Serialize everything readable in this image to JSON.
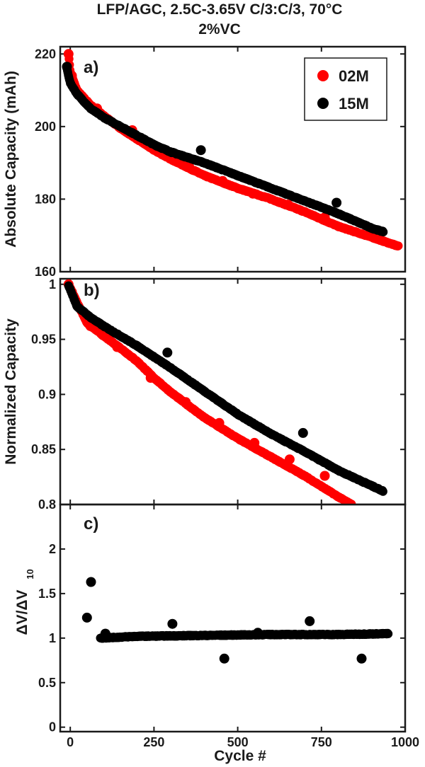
{
  "title_line1": "LFP/AGC, 2.5C-3.65V C/3:C/3, 70°C",
  "title_line2": "2%VC",
  "xlabel": "Cycle #",
  "colors": {
    "02M": "#ff0000",
    "15M": "#000000",
    "axis": "#1a1a1a"
  },
  "chart_data": [
    {
      "type": "scatter",
      "panel": "a)",
      "ylabel": "Absolute Capacity (mAh)",
      "xlim": [
        -30,
        1000
      ],
      "ylim": [
        160,
        222
      ],
      "xticks": [
        0,
        250,
        500,
        750,
        1000
      ],
      "yticks": [
        160,
        180,
        200,
        220
      ],
      "legend": {
        "position": "top-right",
        "entries": [
          "02M",
          "15M"
        ]
      },
      "series": [
        {
          "name": "02M",
          "curve": [
            [
              -5,
              220
            ],
            [
              0,
              215
            ],
            [
              20,
              210
            ],
            [
              60,
              206
            ],
            [
              100,
              203
            ],
            [
              150,
              199.5
            ],
            [
              200,
              196.5
            ],
            [
              250,
              193.5
            ],
            [
              300,
              191
            ],
            [
              400,
              186.5
            ],
            [
              500,
              183
            ],
            [
              600,
              180
            ],
            [
              700,
              176.5
            ],
            [
              800,
              172.5
            ],
            [
              900,
              169.5
            ],
            [
              980,
              167
            ]
          ],
          "outliers": [
            [
              -5,
              220
            ],
            [
              5,
              214
            ],
            [
              80,
              205
            ],
            [
              185,
              199
            ],
            [
              265,
              193
            ],
            [
              355,
              189
            ],
            [
              455,
              185
            ],
            [
              545,
              181.5
            ],
            [
              650,
              178.5
            ],
            [
              760,
              175
            ],
            [
              905,
              171
            ]
          ]
        },
        {
          "name": "15M",
          "curve": [
            [
              -10,
              216
            ],
            [
              0,
              212
            ],
            [
              20,
              209
            ],
            [
              60,
              205
            ],
            [
              100,
              202.5
            ],
            [
              150,
              200
            ],
            [
              200,
              197.5
            ],
            [
              250,
              195
            ],
            [
              300,
              193
            ],
            [
              400,
              190
            ],
            [
              500,
              186.5
            ],
            [
              600,
              183
            ],
            [
              700,
              179.5
            ],
            [
              800,
              176
            ],
            [
              900,
              172
            ],
            [
              935,
              171
            ]
          ],
          "outliers": [
            [
              -10,
              216.5
            ],
            [
              390,
              193.5
            ],
            [
              795,
              179
            ]
          ]
        }
      ]
    },
    {
      "type": "scatter",
      "panel": "b)",
      "ylabel": "Normalized Capacity",
      "xlim": [
        -30,
        1000
      ],
      "ylim": [
        0.8,
        1.005
      ],
      "xticks": [
        0,
        250,
        500,
        750,
        1000
      ],
      "yticks": [
        0.8,
        0.85,
        0.9,
        0.95,
        1
      ],
      "ytick_labels": [
        "0.8",
        "0.85",
        "0.9",
        "0.95",
        "1"
      ],
      "series": [
        {
          "name": "02M",
          "curve": [
            [
              -5,
              1.0
            ],
            [
              10,
              0.99
            ],
            [
              50,
              0.965
            ],
            [
              100,
              0.953
            ],
            [
              150,
              0.942
            ],
            [
              200,
              0.93
            ],
            [
              250,
              0.915
            ],
            [
              300,
              0.902
            ],
            [
              400,
              0.879
            ],
            [
              500,
              0.86
            ],
            [
              600,
              0.843
            ],
            [
              700,
              0.826
            ],
            [
              800,
              0.807
            ],
            [
              840,
              0.8
            ]
          ],
          "outliers": [
            [
              -5,
              1.0
            ],
            [
              5,
              0.993
            ],
            [
              60,
              0.962
            ],
            [
              140,
              0.943
            ],
            [
              240,
              0.915
            ],
            [
              345,
              0.893
            ],
            [
              445,
              0.874
            ],
            [
              550,
              0.856
            ],
            [
              655,
              0.841
            ],
            [
              760,
              0.826
            ]
          ]
        },
        {
          "name": "15M",
          "curve": [
            [
              -5,
              0.999
            ],
            [
              20,
              0.98
            ],
            [
              60,
              0.97
            ],
            [
              100,
              0.962
            ],
            [
              200,
              0.944
            ],
            [
              300,
              0.924
            ],
            [
              400,
              0.903
            ],
            [
              500,
              0.882
            ],
            [
              600,
              0.864
            ],
            [
              700,
              0.848
            ],
            [
              800,
              0.831
            ],
            [
              900,
              0.817
            ],
            [
              935,
              0.812
            ]
          ],
          "outliers": [
            [
              290,
              0.938
            ],
            [
              695,
              0.865
            ]
          ]
        }
      ]
    },
    {
      "type": "scatter",
      "panel": "c)",
      "ylabel_main": "ΔV/ΔV",
      "ylabel_sub": "10",
      "xlim": [
        -30,
        1000
      ],
      "ylim": [
        -0.05,
        2.5
      ],
      "xticks": [
        0,
        250,
        500,
        750,
        1000
      ],
      "yticks": [
        0,
        0.5,
        1,
        1.5,
        2
      ],
      "ytick_labels": [
        "0",
        "0.5",
        "1",
        "1.5",
        "2"
      ],
      "series": [
        {
          "name": "15M",
          "curve": [
            [
              90,
              1.0
            ],
            [
              200,
              1.02
            ],
            [
              400,
              1.03
            ],
            [
              600,
              1.04
            ],
            [
              800,
              1.04
            ],
            [
              950,
              1.05
            ]
          ],
          "outliers": [
            [
              50,
              1.23
            ],
            [
              62,
              1.63
            ],
            [
              105,
              1.05
            ],
            [
              305,
              1.16
            ],
            [
              460,
              0.77
            ],
            [
              560,
              1.06
            ],
            [
              715,
              1.19
            ],
            [
              870,
              0.77
            ]
          ]
        }
      ]
    }
  ]
}
